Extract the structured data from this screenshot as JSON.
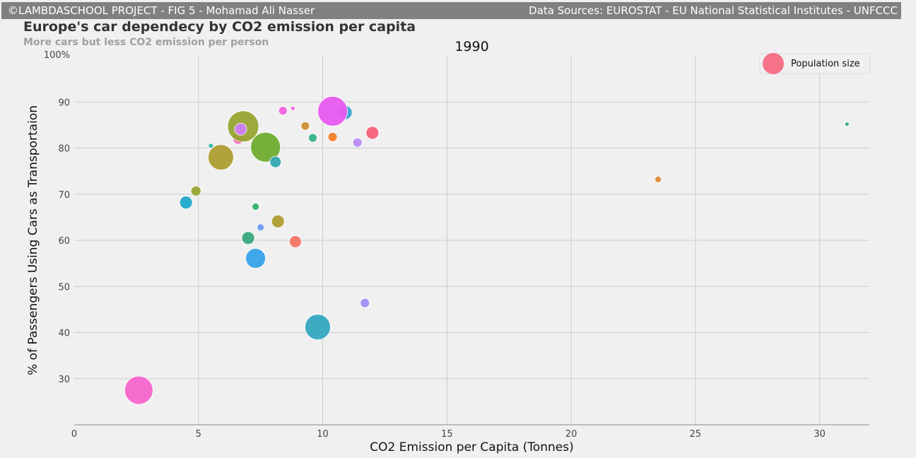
{
  "header": {
    "credit": "©LAMBDASCHOOL PROJECT - FIG 5 - Mohamad Ali Nasser",
    "sources": "Data Sources: EUROSTAT - EU National Statistical Institutes - UNFCCC"
  },
  "chart_data": {
    "type": "scatter",
    "title": "Europe's car dependecy by CO2 emission per capita",
    "subtitle": "More cars but less CO2 emission per person",
    "year": "1990",
    "xlabel": "CO2 Emission per Capita (Tonnes)",
    "ylabel": "% of Passengers Using Cars as Transportaion",
    "xlim": [
      0,
      32
    ],
    "ylim": [
      20,
      100
    ],
    "xticks": [
      0,
      5,
      10,
      15,
      20,
      25,
      30
    ],
    "yticks": [
      30,
      40,
      50,
      60,
      70,
      80,
      90
    ],
    "ytick_top_label": "100%",
    "grid": true,
    "legend": {
      "label": "Population size",
      "placement": "top-right",
      "color": "#f77189"
    },
    "points": [
      {
        "x": 2.6,
        "y": 27.5,
        "size": 20,
        "color": "#f565cc"
      },
      {
        "x": 4.5,
        "y": 68.2,
        "size": 9,
        "color": "#1fa8c8"
      },
      {
        "x": 4.9,
        "y": 70.7,
        "size": 7,
        "color": "#97a431"
      },
      {
        "x": 5.5,
        "y": 80.5,
        "size": 3.5,
        "color": "#33b4a4"
      },
      {
        "x": 5.9,
        "y": 78.0,
        "size": 18,
        "color": "#ae9d31"
      },
      {
        "x": 6.6,
        "y": 82.0,
        "size": 7.5,
        "color": "#f667b5"
      },
      {
        "x": 6.8,
        "y": 84.7,
        "size": 22,
        "color": "#97a431"
      },
      {
        "x": 6.7,
        "y": 84.1,
        "size": 8.5,
        "color": "#d07ef6"
      },
      {
        "x": 7.0,
        "y": 60.5,
        "size": 9,
        "color": "#38a87c"
      },
      {
        "x": 7.3,
        "y": 56.1,
        "size": 14,
        "color": "#36a2ea"
      },
      {
        "x": 7.3,
        "y": 67.3,
        "size": 5,
        "color": "#32b166"
      },
      {
        "x": 7.5,
        "y": 62.8,
        "size": 5,
        "color": "#6e9af3"
      },
      {
        "x": 7.7,
        "y": 80.2,
        "size": 21,
        "color": "#6fac30"
      },
      {
        "x": 8.1,
        "y": 77.0,
        "size": 8,
        "color": "#33aab4"
      },
      {
        "x": 8.2,
        "y": 64.1,
        "size": 9,
        "color": "#ae9d31"
      },
      {
        "x": 8.4,
        "y": 88.1,
        "size": 6,
        "color": "#f561dd"
      },
      {
        "x": 8.8,
        "y": 88.6,
        "size": 3,
        "color": "#f660e0"
      },
      {
        "x": 8.9,
        "y": 59.7,
        "size": 8.5,
        "color": "#f37465"
      },
      {
        "x": 9.3,
        "y": 84.8,
        "size": 6,
        "color": "#ce8f31"
      },
      {
        "x": 9.6,
        "y": 82.2,
        "size": 6,
        "color": "#34b08c"
      },
      {
        "x": 9.8,
        "y": 41.2,
        "size": 18,
        "color": "#33a8c0"
      },
      {
        "x": 10.4,
        "y": 82.4,
        "size": 6.5,
        "color": "#f37d2c"
      },
      {
        "x": 10.9,
        "y": 87.7,
        "size": 10,
        "color": "#38a2ce"
      },
      {
        "x": 10.4,
        "y": 88.0,
        "size": 21,
        "color": "#e858f0"
      },
      {
        "x": 11.4,
        "y": 81.2,
        "size": 6.5,
        "color": "#b78bf4"
      },
      {
        "x": 11.7,
        "y": 46.4,
        "size": 6.5,
        "color": "#9b8ff2"
      },
      {
        "x": 12.0,
        "y": 83.3,
        "size": 9,
        "color": "#f45f78"
      },
      {
        "x": 23.5,
        "y": 73.2,
        "size": 4.5,
        "color": "#d88a30"
      },
      {
        "x": 31.1,
        "y": 85.2,
        "size": 3,
        "color": "#3aa890"
      }
    ]
  }
}
